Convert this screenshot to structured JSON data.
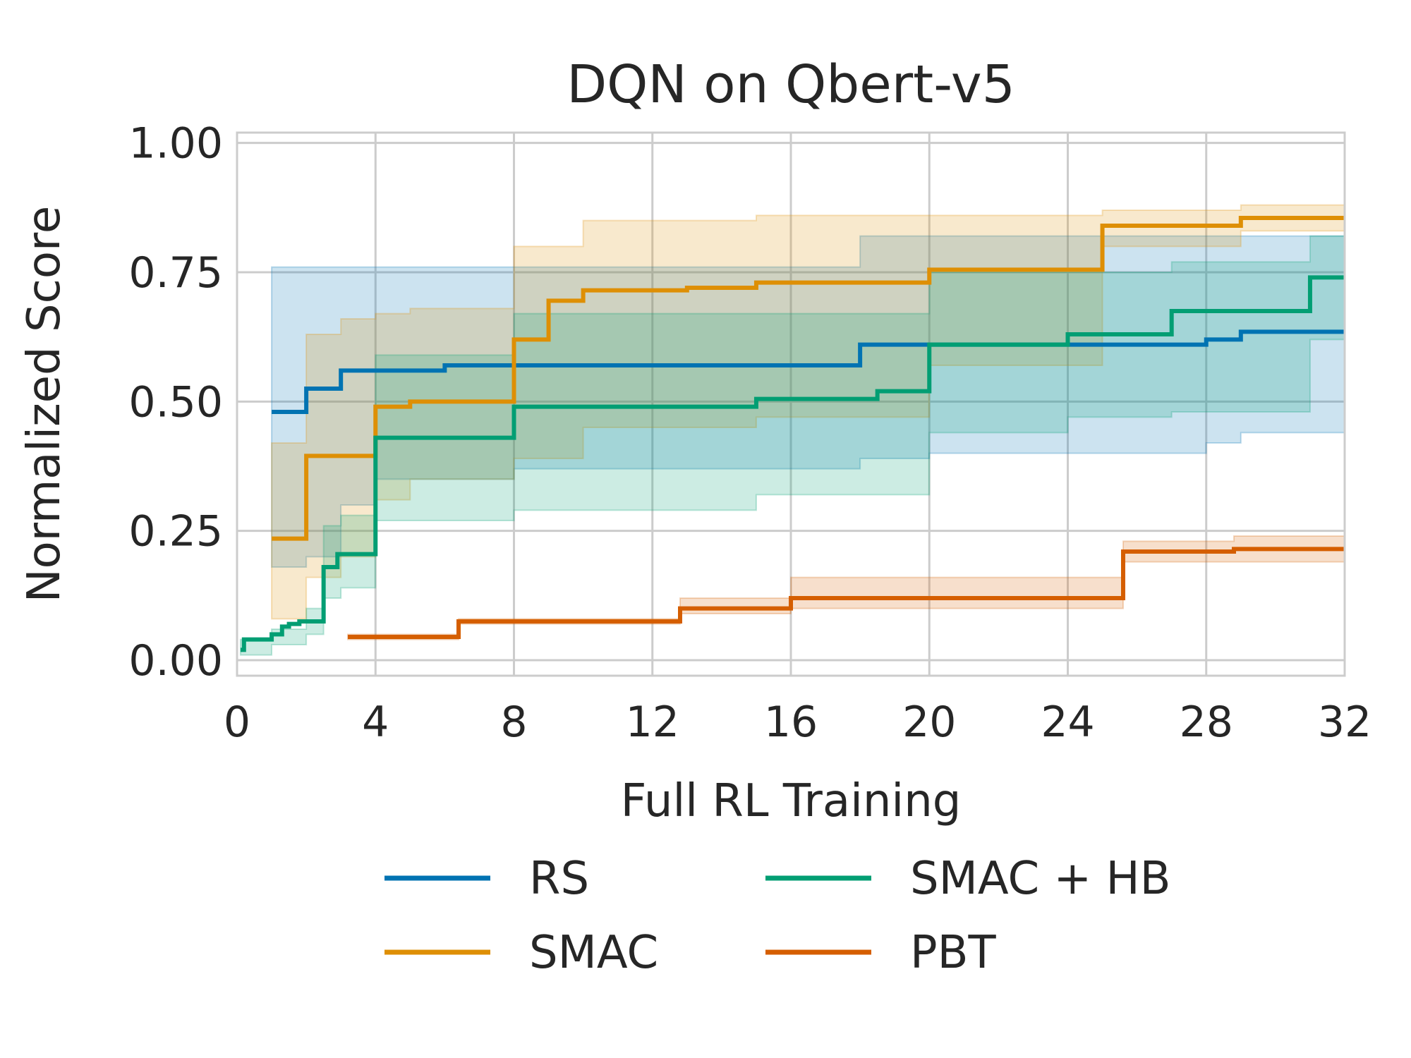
{
  "chart_data": {
    "type": "line",
    "title": "DQN on Qbert-v5",
    "xlabel": "Full RL Training",
    "ylabel": "Normalized Score",
    "xlim": [
      0,
      32
    ],
    "ylim": [
      -0.03,
      1.02
    ],
    "x_ticks": [
      0,
      4,
      8,
      12,
      16,
      20,
      24,
      28,
      32
    ],
    "y_ticks": [
      0.0,
      0.25,
      0.5,
      0.75,
      1.0
    ],
    "x_tick_labels": [
      "0",
      "4",
      "8",
      "12",
      "16",
      "20",
      "24",
      "28",
      "32"
    ],
    "y_tick_labels": [
      "0.00",
      "0.25",
      "0.50",
      "0.75",
      "1.00"
    ],
    "grid": true,
    "legend_position": "bottom-center",
    "series": [
      {
        "name": "RS",
        "color": "#0173b2",
        "step": true,
        "points": [
          [
            1.0,
            0.48
          ],
          [
            2.0,
            0.525
          ],
          [
            3.0,
            0.56
          ],
          [
            6.0,
            0.57
          ],
          [
            18.0,
            0.61
          ],
          [
            28.0,
            0.62
          ],
          [
            29.0,
            0.635
          ],
          [
            32.0,
            0.635
          ]
        ],
        "band": [
          [
            1.0,
            0.18,
            0.76
          ],
          [
            2.0,
            0.2,
            0.76
          ],
          [
            3.0,
            0.3,
            0.76
          ],
          [
            4.0,
            0.35,
            0.76
          ],
          [
            8.0,
            0.37,
            0.76
          ],
          [
            18.0,
            0.39,
            0.82
          ],
          [
            20.0,
            0.4,
            0.82
          ],
          [
            28.0,
            0.42,
            0.82
          ],
          [
            29.0,
            0.44,
            0.82
          ],
          [
            32.0,
            0.44,
            0.82
          ]
        ]
      },
      {
        "name": "SMAC",
        "color": "#de8f05",
        "step": true,
        "points": [
          [
            1.0,
            0.235
          ],
          [
            2.0,
            0.395
          ],
          [
            4.0,
            0.49
          ],
          [
            5.0,
            0.5
          ],
          [
            8.0,
            0.62
          ],
          [
            9.0,
            0.695
          ],
          [
            10.0,
            0.715
          ],
          [
            13.0,
            0.72
          ],
          [
            15.0,
            0.73
          ],
          [
            20.0,
            0.755
          ],
          [
            25.0,
            0.84
          ],
          [
            29.0,
            0.855
          ],
          [
            32.0,
            0.855
          ]
        ],
        "band": [
          [
            1.0,
            0.08,
            0.42
          ],
          [
            2.0,
            0.16,
            0.63
          ],
          [
            3.0,
            0.2,
            0.66
          ],
          [
            4.0,
            0.31,
            0.67
          ],
          [
            5.0,
            0.35,
            0.68
          ],
          [
            8.0,
            0.39,
            0.8
          ],
          [
            10.0,
            0.45,
            0.85
          ],
          [
            15.0,
            0.47,
            0.86
          ],
          [
            20.0,
            0.57,
            0.86
          ],
          [
            25.0,
            0.8,
            0.87
          ],
          [
            29.0,
            0.83,
            0.88
          ],
          [
            32.0,
            0.83,
            0.88
          ]
        ]
      },
      {
        "name": "SMAC + HB",
        "color": "#029e73",
        "step": true,
        "points": [
          [
            0.1,
            0.02
          ],
          [
            0.2,
            0.04
          ],
          [
            1.0,
            0.05
          ],
          [
            1.3,
            0.065
          ],
          [
            1.5,
            0.07
          ],
          [
            1.8,
            0.075
          ],
          [
            2.5,
            0.18
          ],
          [
            2.9,
            0.205
          ],
          [
            4.0,
            0.43
          ],
          [
            8.0,
            0.49
          ],
          [
            11.0,
            0.49
          ],
          [
            15.0,
            0.505
          ],
          [
            18.5,
            0.52
          ],
          [
            20.0,
            0.61
          ],
          [
            24.0,
            0.63
          ],
          [
            27.0,
            0.675
          ],
          [
            31.0,
            0.74
          ],
          [
            32.0,
            0.74
          ]
        ],
        "band": [
          [
            0.1,
            0.01,
            0.04
          ],
          [
            1.0,
            0.03,
            0.06
          ],
          [
            2.0,
            0.05,
            0.1
          ],
          [
            2.5,
            0.12,
            0.26
          ],
          [
            3.0,
            0.14,
            0.28
          ],
          [
            4.0,
            0.27,
            0.59
          ],
          [
            8.0,
            0.29,
            0.67
          ],
          [
            15.0,
            0.32,
            0.67
          ],
          [
            20.0,
            0.44,
            0.75
          ],
          [
            24.0,
            0.47,
            0.75
          ],
          [
            27.0,
            0.48,
            0.77
          ],
          [
            31.0,
            0.62,
            0.82
          ],
          [
            32.0,
            0.62,
            0.82
          ]
        ]
      },
      {
        "name": "PBT",
        "color": "#d55e00",
        "step": true,
        "points": [
          [
            3.2,
            0.045
          ],
          [
            6.4,
            0.075
          ],
          [
            12.8,
            0.1
          ],
          [
            16.0,
            0.12
          ],
          [
            25.6,
            0.21
          ],
          [
            28.8,
            0.215
          ],
          [
            32.0,
            0.215
          ]
        ],
        "band": [
          [
            3.2,
            0.04,
            0.05
          ],
          [
            6.4,
            0.07,
            0.08
          ],
          [
            12.8,
            0.09,
            0.12
          ],
          [
            16.0,
            0.1,
            0.16
          ],
          [
            25.6,
            0.19,
            0.23
          ],
          [
            28.8,
            0.19,
            0.24
          ],
          [
            32.0,
            0.19,
            0.24
          ]
        ]
      }
    ]
  }
}
